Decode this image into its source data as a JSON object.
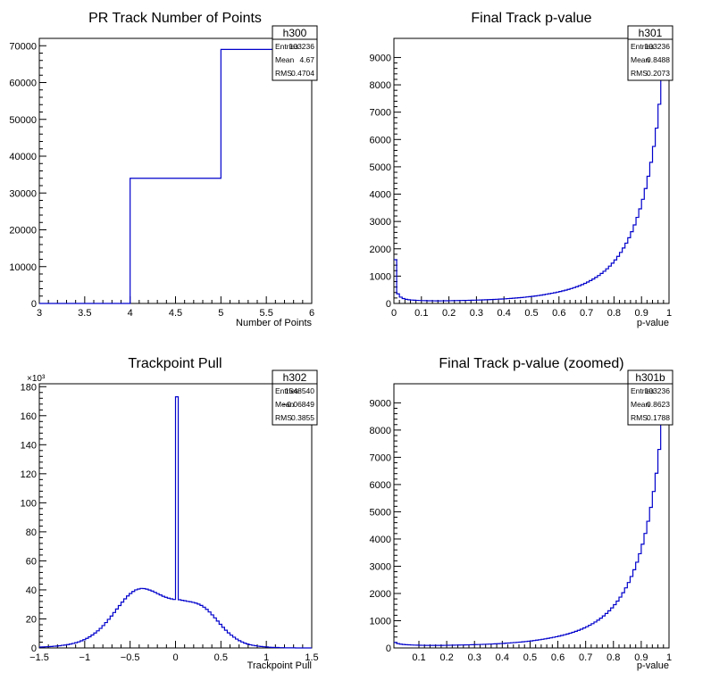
{
  "chart_data": [
    {
      "id": "h300",
      "type": "histogram",
      "title": "PR Track Number of Points",
      "xlabel": "Number of Points",
      "ylabel": "",
      "xlim": [
        3,
        6
      ],
      "ylim": [
        0,
        72000
      ],
      "xticks": [
        "3",
        "3.5",
        "4",
        "4.5",
        "5",
        "5.5",
        "6"
      ],
      "yticks": [
        "0",
        "10000",
        "20000",
        "30000",
        "40000",
        "50000",
        "60000",
        "70000"
      ],
      "y_multiplier_label": "",
      "line_color": "#0000cc",
      "bins": [
        [
          3,
          4,
          0
        ],
        [
          4,
          5,
          34000
        ],
        [
          5,
          6,
          69000
        ]
      ],
      "stats": {
        "name": "h300",
        "entries": "103236",
        "mean": "4.67",
        "rms": "0.4704"
      }
    },
    {
      "id": "h301",
      "type": "histogram",
      "title": "Final Track p-value",
      "xlabel": "p-value",
      "ylabel": "",
      "xlim": [
        0,
        1
      ],
      "ylim": [
        0,
        9700
      ],
      "xticks": [
        "0",
        "0.1",
        "0.2",
        "0.3",
        "0.4",
        "0.5",
        "0.6",
        "0.7",
        "0.8",
        "0.9",
        "1"
      ],
      "yticks": [
        "0",
        "1000",
        "2000",
        "3000",
        "4000",
        "5000",
        "6000",
        "7000",
        "8000",
        "9000"
      ],
      "y_multiplier_label": "",
      "line_color": "#0000cc",
      "bin_width": 0.01,
      "values": [
        1600,
        350,
        230,
        180,
        150,
        135,
        125,
        118,
        112,
        108,
        104,
        101,
        99,
        97,
        96,
        95,
        95,
        96,
        97,
        98,
        100,
        102,
        104,
        106,
        108,
        110,
        112,
        115,
        118,
        121,
        124,
        127,
        131,
        135,
        139,
        143,
        148,
        153,
        158,
        164,
        170,
        177,
        184,
        192,
        200,
        208,
        217,
        227,
        238,
        249,
        261,
        274,
        288,
        303,
        319,
        336,
        354,
        373,
        393,
        414,
        437,
        461,
        487,
        515,
        545,
        577,
        612,
        650,
        690,
        735,
        783,
        836,
        893,
        955,
        1023,
        1097,
        1178,
        1267,
        1365,
        1473,
        1592,
        1723,
        1868,
        2029,
        2207,
        2405,
        2626,
        2873,
        3150,
        3461,
        3811,
        4206,
        4654,
        5164,
        5747,
        6416,
        7290,
        9500,
        9600,
        9600
      ],
      "stats": {
        "name": "h301",
        "entries": "103236",
        "mean": "0.8488",
        "rms": "0.2073"
      }
    },
    {
      "id": "h302",
      "type": "histogram",
      "title": "Trackpoint Pull",
      "xlabel": "Trackpoint Pull",
      "ylabel": "",
      "xlim": [
        -1.5,
        1.5
      ],
      "ylim": [
        0,
        182
      ],
      "xticks": [
        "−1.5",
        "−1",
        "−0.5",
        "0",
        "0.5",
        "1",
        "1.5"
      ],
      "yticks": [
        "0",
        "20",
        "40",
        "60",
        "80",
        "100",
        "120",
        "140",
        "160",
        "180"
      ],
      "y_multiplier_label": "×10³",
      "line_color": "#0000cc",
      "bin_width": 0.03,
      "values": [
        0.6,
        0.7,
        0.8,
        0.9,
        1.0,
        1.2,
        1.3,
        1.5,
        1.8,
        2.0,
        2.3,
        2.7,
        3.1,
        3.6,
        4.2,
        4.9,
        5.7,
        6.6,
        7.7,
        8.9,
        10.3,
        11.8,
        13.5,
        15.4,
        17.5,
        19.7,
        22.0,
        24.4,
        26.8,
        29.2,
        31.6,
        33.8,
        35.8,
        37.5,
        38.9,
        40.0,
        40.6,
        41.0,
        40.9,
        40.5,
        39.9,
        39.2,
        38.3,
        37.4,
        36.5,
        35.6,
        34.9,
        34.3,
        33.8,
        33.4,
        173.0,
        33.2,
        32.8,
        32.5,
        32.1,
        31.8,
        31.4,
        30.9,
        30.2,
        29.3,
        28.1,
        26.6,
        24.8,
        22.8,
        20.7,
        18.5,
        16.3,
        14.2,
        12.2,
        10.4,
        8.8,
        7.4,
        6.1,
        5.0,
        4.1,
        3.3,
        2.7,
        2.2,
        1.8,
        1.5,
        1.2,
        1.0,
        0.8,
        0.7,
        0.5,
        0.4,
        0.3,
        0.3,
        0.2,
        0.2,
        0.1,
        0.1,
        0.1,
        0.1,
        0.0,
        0.0,
        0.0,
        0.0,
        0.0,
        0.0
      ],
      "stats": {
        "name": "h302",
        "entries": "1548540",
        "mean": "−0.06849",
        "rms": "0.3855"
      }
    },
    {
      "id": "h301b",
      "type": "histogram",
      "title": "Final Track p-value (zoomed)",
      "xlabel": "p-value",
      "ylabel": "",
      "xlim": [
        0.01,
        1
      ],
      "ylim": [
        0,
        9700
      ],
      "xticks": [
        "0.1",
        "0.2",
        "0.3",
        "0.4",
        "0.5",
        "0.6",
        "0.7",
        "0.8",
        "0.9",
        "1"
      ],
      "xtick_values": [
        0.1,
        0.2,
        0.3,
        0.4,
        0.5,
        0.6,
        0.7,
        0.8,
        0.9,
        1.0
      ],
      "yticks": [
        "0",
        "1000",
        "2000",
        "3000",
        "4000",
        "5000",
        "6000",
        "7000",
        "8000",
        "9000"
      ],
      "y_multiplier_label": "",
      "line_color": "#0000cc",
      "bin_width": 0.01,
      "values": [
        200,
        160,
        140,
        128,
        120,
        114,
        109,
        105,
        102,
        99,
        97,
        95,
        94,
        93,
        93,
        93,
        94,
        95,
        96,
        98,
        100,
        102,
        104,
        106,
        108,
        110,
        113,
        116,
        119,
        122,
        125,
        129,
        133,
        137,
        141,
        146,
        151,
        156,
        162,
        168,
        175,
        182,
        190,
        198,
        206,
        215,
        225,
        236,
        247,
        259,
        272,
        286,
        301,
        317,
        334,
        352,
        371,
        391,
        412,
        435,
        459,
        485,
        513,
        543,
        575,
        610,
        648,
        688,
        733,
        781,
        834,
        891,
        953,
        1021,
        1095,
        1176,
        1265,
        1363,
        1471,
        1590,
        1721,
        1866,
        2027,
        2205,
        2403,
        2624,
        2871,
        3148,
        3459,
        3809,
        4204,
        4652,
        5162,
        5745,
        6414,
        7290,
        9500,
        9600,
        9600
      ],
      "stats": {
        "name": "h301b",
        "entries": "103236",
        "mean": "0.8623",
        "rms": "0.1788"
      }
    }
  ],
  "stats_labels": {
    "entries": "Entries",
    "mean": "Mean",
    "rms": "RMS"
  }
}
